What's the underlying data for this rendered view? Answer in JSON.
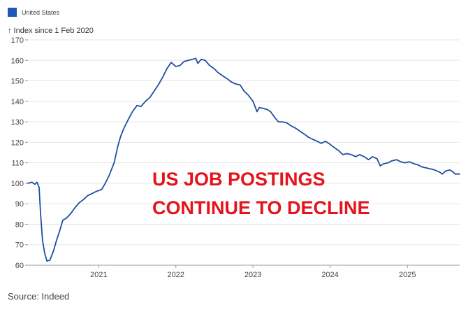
{
  "chart_data": {
    "type": "line",
    "title": "",
    "ylabel": "↑ Index since 1 Feb 2020",
    "xlabel": "",
    "ylim": [
      60,
      170
    ],
    "yticks": [
      60,
      70,
      80,
      90,
      100,
      110,
      120,
      130,
      140,
      150,
      160,
      170
    ],
    "xlim": [
      "2020-02-01",
      "2025-09-05"
    ],
    "xticks": [
      {
        "date": "2021-01-01",
        "label": "2021"
      },
      {
        "date": "2022-01-01",
        "label": "2022"
      },
      {
        "date": "2023-01-01",
        "label": "2023"
      },
      {
        "date": "2024-01-01",
        "label": "2024"
      },
      {
        "date": "2025-01-01",
        "label": "2025"
      }
    ],
    "grid": "horizontal",
    "legend_position": "top-left",
    "series": [
      {
        "name": "United States",
        "color": "#1f4fa3",
        "points": [
          [
            "2020-02-01",
            100.0
          ],
          [
            "2020-02-20",
            100.5
          ],
          [
            "2020-03-05",
            99.5
          ],
          [
            "2020-03-15",
            100.5
          ],
          [
            "2020-03-25",
            98.0
          ],
          [
            "2020-04-01",
            85.0
          ],
          [
            "2020-04-10",
            72.0
          ],
          [
            "2020-04-20",
            66.0
          ],
          [
            "2020-05-01",
            62.0
          ],
          [
            "2020-05-15",
            62.5
          ],
          [
            "2020-06-01",
            67.0
          ],
          [
            "2020-06-15",
            72.0
          ],
          [
            "2020-07-01",
            77.0
          ],
          [
            "2020-07-15",
            82.0
          ],
          [
            "2020-08-01",
            83.0
          ],
          [
            "2020-08-20",
            85.0
          ],
          [
            "2020-09-10",
            88.0
          ],
          [
            "2020-10-01",
            90.5
          ],
          [
            "2020-10-20",
            92.0
          ],
          [
            "2020-11-10",
            94.0
          ],
          [
            "2020-12-01",
            95.0
          ],
          [
            "2020-12-20",
            96.0
          ],
          [
            "2021-01-15",
            97.0
          ],
          [
            "2021-02-01",
            100.0
          ],
          [
            "2021-02-20",
            104.0
          ],
          [
            "2021-03-15",
            110.0
          ],
          [
            "2021-04-01",
            118.0
          ],
          [
            "2021-04-15",
            123.0
          ],
          [
            "2021-05-01",
            127.0
          ],
          [
            "2021-05-20",
            131.0
          ],
          [
            "2021-06-10",
            135.0
          ],
          [
            "2021-07-01",
            138.0
          ],
          [
            "2021-07-20",
            137.5
          ],
          [
            "2021-08-10",
            140.0
          ],
          [
            "2021-09-01",
            142.0
          ],
          [
            "2021-09-20",
            145.0
          ],
          [
            "2021-10-10",
            148.0
          ],
          [
            "2021-11-01",
            152.0
          ],
          [
            "2021-11-20",
            156.0
          ],
          [
            "2021-12-10",
            159.0
          ],
          [
            "2022-01-01",
            157.0
          ],
          [
            "2022-01-20",
            157.5
          ],
          [
            "2022-02-10",
            159.5
          ],
          [
            "2022-03-01",
            160.0
          ],
          [
            "2022-03-20",
            160.5
          ],
          [
            "2022-04-05",
            161.0
          ],
          [
            "2022-04-15",
            158.5
          ],
          [
            "2022-05-01",
            160.5
          ],
          [
            "2022-05-20",
            160.0
          ],
          [
            "2022-06-10",
            157.5
          ],
          [
            "2022-07-01",
            156.0
          ],
          [
            "2022-07-20",
            154.0
          ],
          [
            "2022-08-10",
            152.5
          ],
          [
            "2022-09-01",
            151.0
          ],
          [
            "2022-09-20",
            149.5
          ],
          [
            "2022-10-10",
            148.5
          ],
          [
            "2022-11-01",
            148.0
          ],
          [
            "2022-11-20",
            145.0
          ],
          [
            "2022-12-10",
            143.0
          ],
          [
            "2023-01-01",
            140.0
          ],
          [
            "2023-01-20",
            135.0
          ],
          [
            "2023-02-01",
            137.0
          ],
          [
            "2023-02-20",
            136.5
          ],
          [
            "2023-03-10",
            136.0
          ],
          [
            "2023-03-25",
            135.0
          ],
          [
            "2023-04-15",
            132.0
          ],
          [
            "2023-05-01",
            130.0
          ],
          [
            "2023-05-20",
            130.0
          ],
          [
            "2023-06-10",
            129.5
          ],
          [
            "2023-07-01",
            128.0
          ],
          [
            "2023-07-20",
            127.0
          ],
          [
            "2023-08-10",
            125.5
          ],
          [
            "2023-09-01",
            124.0
          ],
          [
            "2023-09-20",
            122.5
          ],
          [
            "2023-10-10",
            121.5
          ],
          [
            "2023-11-01",
            120.5
          ],
          [
            "2023-11-20",
            119.5
          ],
          [
            "2023-12-10",
            120.5
          ],
          [
            "2024-01-01",
            119.0
          ],
          [
            "2024-01-20",
            117.5
          ],
          [
            "2024-02-10",
            116.0
          ],
          [
            "2024-03-01",
            114.0
          ],
          [
            "2024-03-20",
            114.5
          ],
          [
            "2024-04-10",
            114.0
          ],
          [
            "2024-05-01",
            113.0
          ],
          [
            "2024-05-20",
            114.0
          ],
          [
            "2024-06-10",
            113.0
          ],
          [
            "2024-07-01",
            111.5
          ],
          [
            "2024-07-20",
            113.0
          ],
          [
            "2024-08-10",
            112.0
          ],
          [
            "2024-08-25",
            108.5
          ],
          [
            "2024-09-10",
            109.5
          ],
          [
            "2024-10-01",
            110.0
          ],
          [
            "2024-10-20",
            111.0
          ],
          [
            "2024-11-10",
            111.5
          ],
          [
            "2024-12-01",
            110.5
          ],
          [
            "2024-12-20",
            110.0
          ],
          [
            "2025-01-10",
            110.5
          ],
          [
            "2025-02-01",
            109.5
          ],
          [
            "2025-02-20",
            109.0
          ],
          [
            "2025-03-10",
            108.0
          ],
          [
            "2025-04-01",
            107.5
          ],
          [
            "2025-04-20",
            107.0
          ],
          [
            "2025-05-10",
            106.5
          ],
          [
            "2025-06-01",
            105.5
          ],
          [
            "2025-06-15",
            104.5
          ],
          [
            "2025-07-01",
            106.0
          ],
          [
            "2025-07-20",
            106.5
          ],
          [
            "2025-08-05",
            105.5
          ],
          [
            "2025-08-15",
            104.5
          ],
          [
            "2025-09-05",
            104.5
          ]
        ]
      }
    ]
  },
  "legend": {
    "label": "United States",
    "swatch_color": "#2157b0"
  },
  "headline": "US JOB POSTINGS\nCONTINUE TO DECLINE",
  "source": "Source: Indeed"
}
